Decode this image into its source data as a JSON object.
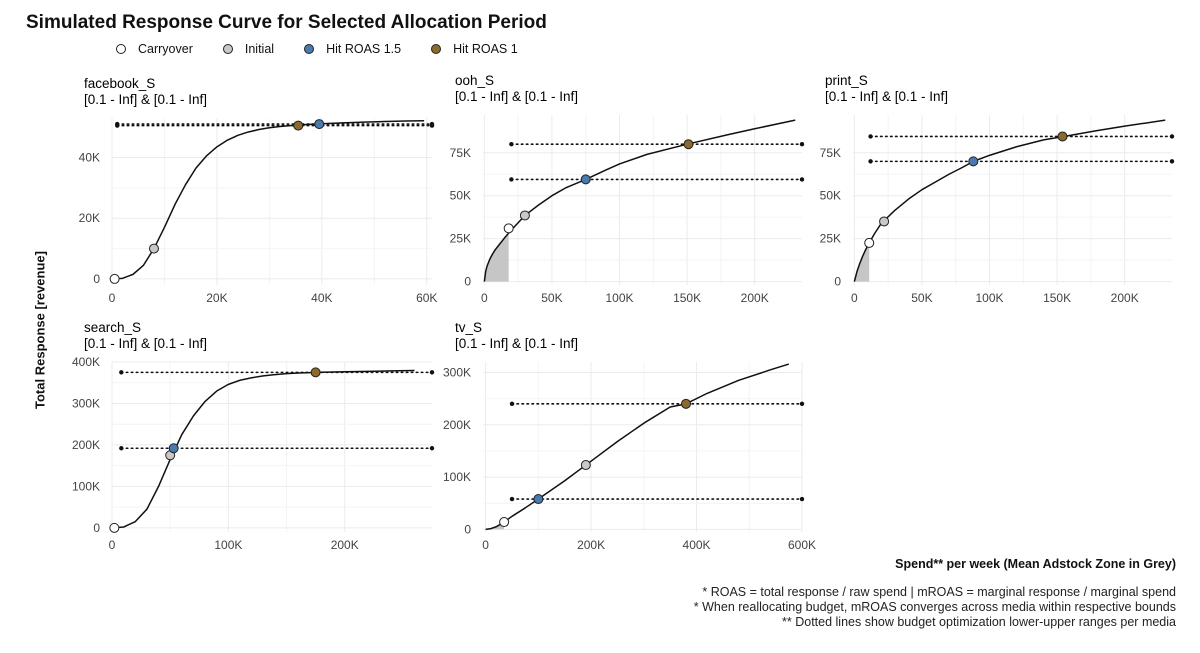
{
  "title": "Simulated Response Curve for Selected Allocation Period",
  "legend": [
    {
      "label": "Carryover",
      "color": "#ffffff"
    },
    {
      "label": "Initial",
      "color": "#c8c8c8"
    },
    {
      "label": "Hit ROAS 1.5",
      "color": "#4a7ab0"
    },
    {
      "label": "Hit ROAS 1",
      "color": "#8b6a2b"
    }
  ],
  "y_axis_label": "Total Response [revenue]",
  "x_axis_label": "Spend** per week (Mean Adstock Zone in Grey)",
  "footnotes": [
    "* ROAS = total response / raw spend | mROAS = marginal response / marginal spend",
    "* When reallocating budget, mROAS converges across media within respective bounds",
    "** Dotted lines show budget optimization lower-upper ranges per media"
  ],
  "chart_data": [
    {
      "type": "line",
      "title": "facebook_S",
      "subtitle": "[0.1 - Inf] & [0.1 - Inf]",
      "xlim": [
        0,
        61000
      ],
      "ylim": [
        -2000,
        53000
      ],
      "x_ticks": [
        0,
        20000,
        40000,
        60000
      ],
      "x_tick_labels": [
        "0",
        "20K",
        "40K",
        "60K"
      ],
      "y_ticks": [
        0,
        20000,
        40000
      ],
      "y_tick_labels": [
        "0",
        "20K",
        "40K"
      ],
      "curve": {
        "x": [
          0,
          2000,
          4000,
          6000,
          8000,
          10000,
          12000,
          14000,
          16000,
          18000,
          20000,
          22000,
          24000,
          26000,
          28000,
          30000,
          32000,
          34000,
          36000,
          38000,
          40000,
          44000,
          48000,
          52000,
          56000,
          59500
        ],
        "y": [
          0,
          200,
          1500,
          4500,
          10000,
          17000,
          24500,
          31000,
          36500,
          40500,
          43500,
          45700,
          47300,
          48400,
          49200,
          49800,
          50200,
          50500,
          50750,
          50950,
          51100,
          51400,
          51650,
          51850,
          52000,
          52100
        ]
      },
      "mean_adstock_x": 0,
      "points": {
        "carryover": [
          500,
          0
        ],
        "initial": [
          8000,
          10000
        ],
        "roas_1_5": [
          39500,
          51000
        ],
        "roas_1": [
          35500,
          50500
        ]
      },
      "ranges": [
        {
          "y": 51000,
          "x": [
            1000,
            61000
          ]
        },
        {
          "y": 50500,
          "x": [
            1000,
            61000
          ]
        }
      ]
    },
    {
      "type": "line",
      "title": "ooh_S",
      "subtitle": "[0.1 - Inf] & [0.1 - Inf]",
      "xlim": [
        -1000,
        235000
      ],
      "ylim": [
        -2000,
        97000
      ],
      "x_ticks": [
        0,
        50000,
        100000,
        150000,
        200000
      ],
      "x_tick_labels": [
        "0",
        "50K",
        "100K",
        "150K",
        "200K"
      ],
      "y_ticks": [
        0,
        25000,
        50000,
        75000
      ],
      "y_tick_labels": [
        "0",
        "25K",
        "50K",
        "75K"
      ],
      "curve": {
        "x": [
          0,
          1000,
          2000,
          4000,
          6000,
          8000,
          10000,
          15000,
          20000,
          30000,
          40000,
          50000,
          60000,
          75000,
          90000,
          100000,
          120000,
          150000,
          180000,
          200000,
          230000
        ],
        "y": [
          0,
          6000,
          9000,
          13000,
          16000,
          18500,
          20500,
          25500,
          30000,
          38500,
          44500,
          50000,
          54500,
          59500,
          65000,
          68500,
          74000,
          80000,
          85500,
          89000,
          94000
        ]
      },
      "mean_adstock_x": 18000,
      "points": {
        "carryover": [
          18000,
          31000
        ],
        "initial": [
          30000,
          38500
        ],
        "roas_1_5": [
          75000,
          59500
        ],
        "roas_1": [
          151000,
          80000
        ]
      },
      "ranges": [
        {
          "y": 80000,
          "x": [
            20000,
            235000
          ]
        },
        {
          "y": 59500,
          "x": [
            20000,
            235000
          ]
        }
      ]
    },
    {
      "type": "line",
      "title": "print_S",
      "subtitle": "[0.1 - Inf] & [0.1 - Inf]",
      "xlim": [
        -1000,
        235000
      ],
      "ylim": [
        -2000,
        97000
      ],
      "x_ticks": [
        0,
        50000,
        100000,
        150000,
        200000
      ],
      "x_tick_labels": [
        "0",
        "50K",
        "100K",
        "150K",
        "200K"
      ],
      "y_ticks": [
        0,
        25000,
        50000,
        75000
      ],
      "y_tick_labels": [
        "0",
        "25K",
        "50K",
        "75K"
      ],
      "curve": {
        "x": [
          0,
          2000,
          4000,
          6000,
          8000,
          11000,
          15000,
          20000,
          30000,
          40000,
          50000,
          60000,
          70000,
          80000,
          88000,
          100000,
          120000,
          140000,
          155000,
          180000,
          200000,
          230000
        ],
        "y": [
          0,
          6000,
          10500,
          14500,
          18000,
          22500,
          28000,
          34000,
          41500,
          48000,
          53500,
          58000,
          62500,
          66500,
          70000,
          73500,
          78500,
          82500,
          84500,
          88000,
          90500,
          94000
        ]
      },
      "mean_adstock_x": 11000,
      "points": {
        "carryover": [
          11000,
          22500
        ],
        "initial": [
          22000,
          35000
        ],
        "roas_1_5": [
          88000,
          70000
        ],
        "roas_1": [
          154000,
          84500
        ]
      },
      "ranges": [
        {
          "y": 84500,
          "x": [
            12000,
            235000
          ]
        },
        {
          "y": 70000,
          "x": [
            12000,
            235000
          ]
        }
      ]
    },
    {
      "type": "line",
      "title": "search_S",
      "subtitle": "[0.1 - Inf] & [0.1 - Inf]",
      "xlim": [
        0,
        275000
      ],
      "ylim": [
        -10000,
        400000
      ],
      "x_ticks": [
        0,
        100000,
        200000
      ],
      "x_tick_labels": [
        "0",
        "100K",
        "200K"
      ],
      "y_ticks": [
        0,
        100000,
        200000,
        300000,
        400000
      ],
      "y_tick_labels": [
        "0",
        "100K",
        "200K",
        "300K",
        "400K"
      ],
      "curve": {
        "x": [
          0,
          10000,
          20000,
          30000,
          40000,
          50000,
          55000,
          60000,
          70000,
          80000,
          90000,
          100000,
          110000,
          120000,
          130000,
          140000,
          150000,
          160000,
          170000,
          180000,
          200000,
          220000,
          240000,
          260000
        ],
        "y": [
          0,
          2000,
          15000,
          45000,
          100000,
          165000,
          195000,
          225000,
          270000,
          305000,
          330000,
          346000,
          356000,
          362000,
          366500,
          369500,
          372000,
          373500,
          374500,
          375200,
          376500,
          377500,
          378500,
          379500
        ]
      },
      "mean_adstock_x": 0,
      "points": {
        "carryover": [
          2000,
          0
        ],
        "initial": [
          50000,
          175000
        ],
        "roas_1_5": [
          53000,
          192000
        ],
        "roas_1": [
          175000,
          375000
        ]
      },
      "ranges": [
        {
          "y": 375000,
          "x": [
            8000,
            275000
          ]
        },
        {
          "y": 192000,
          "x": [
            8000,
            275000
          ]
        }
      ]
    },
    {
      "type": "line",
      "title": "tv_S",
      "subtitle": "[0.1 - Inf] & [0.1 - Inf]",
      "xlim": [
        -5000,
        600000
      ],
      "ylim": [
        -5000,
        320000
      ],
      "x_ticks": [
        0,
        200000,
        400000,
        600000
      ],
      "x_tick_labels": [
        "0",
        "200K",
        "400K",
        "600K"
      ],
      "y_ticks": [
        0,
        100000,
        200000,
        300000
      ],
      "y_tick_labels": [
        "0",
        "100K",
        "200K",
        "300K"
      ],
      "curve": {
        "x": [
          0,
          10000,
          20000,
          35000,
          50000,
          75000,
          100000,
          150000,
          190000,
          250000,
          300000,
          350000,
          380000,
          420000,
          480000,
          540000,
          575000
        ],
        "y": [
          0,
          1500,
          5000,
          14000,
          25000,
          41000,
          58000,
          93000,
          123000,
          168000,
          203000,
          234000,
          240000,
          260000,
          285000,
          305000,
          316000
        ]
      },
      "mean_adstock_x": 35000,
      "points": {
        "carryover": [
          35000,
          14000
        ],
        "initial": [
          190000,
          123000
        ],
        "roas_1_5": [
          100000,
          58000
        ],
        "roas_1": [
          380000,
          240000
        ]
      },
      "ranges": [
        {
          "y": 240000,
          "x": [
            50000,
            600000
          ]
        },
        {
          "y": 58000,
          "x": [
            50000,
            600000
          ]
        }
      ]
    }
  ]
}
